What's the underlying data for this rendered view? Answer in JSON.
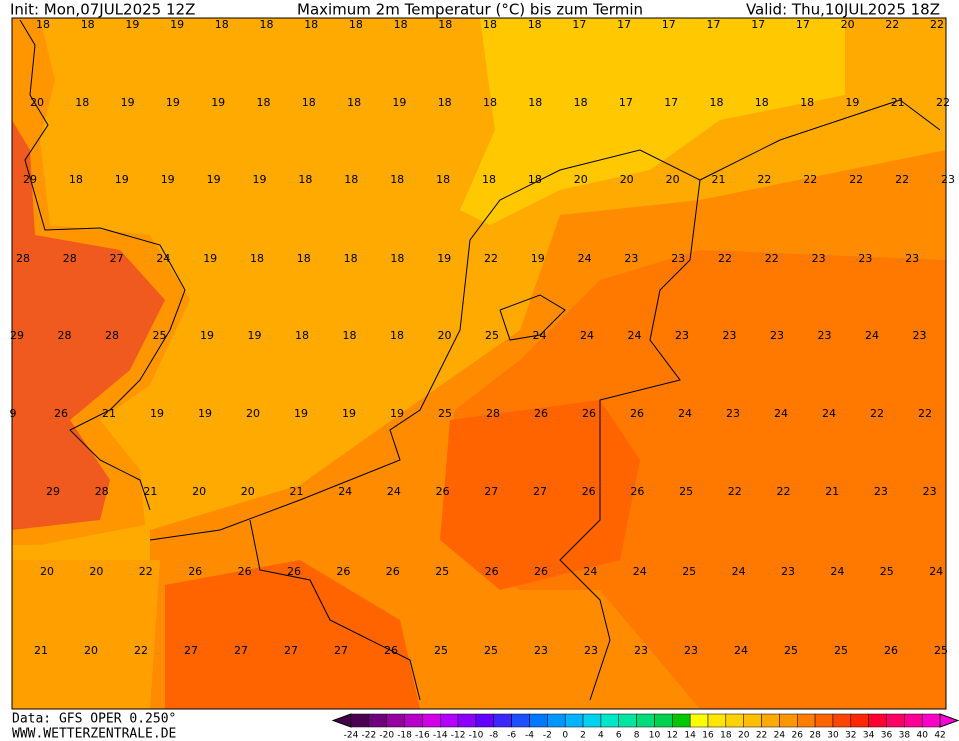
{
  "header": {
    "init": "Init: Mon,07JUL2025 12Z",
    "title": "Maximum 2m Temperatur (°C) bis zum Termin",
    "valid": "Valid: Thu,10JUL2025 18Z"
  },
  "map": {
    "rows": [
      [
        18,
        18,
        19,
        19,
        18,
        18,
        18,
        18,
        18,
        18,
        18,
        18,
        17,
        17,
        17,
        17,
        17,
        17,
        20,
        22,
        22
      ],
      [
        20,
        18,
        19,
        19,
        19,
        18,
        18,
        18,
        19,
        18,
        18,
        18,
        18,
        17,
        17,
        18,
        18,
        18,
        19,
        21,
        22
      ],
      [
        29,
        18,
        19,
        19,
        19,
        19,
        18,
        18,
        18,
        18,
        18,
        18,
        20,
        20,
        20,
        21,
        22,
        22,
        22,
        22,
        23
      ],
      [
        28,
        28,
        27,
        24,
        19,
        18,
        18,
        18,
        18,
        19,
        22,
        19,
        24,
        23,
        23,
        22,
        22,
        23,
        23,
        23
      ],
      [
        29,
        28,
        28,
        25,
        19,
        19,
        18,
        18,
        18,
        20,
        25,
        24,
        24,
        24,
        23,
        23,
        23,
        23,
        24,
        23
      ],
      [
        9,
        26,
        21,
        19,
        19,
        20,
        19,
        19,
        19,
        25,
        28,
        26,
        26,
        26,
        24,
        23,
        24,
        24,
        22,
        22
      ],
      [
        29,
        28,
        21,
        20,
        20,
        21,
        24,
        24,
        26,
        27,
        27,
        26,
        26,
        25,
        22,
        22,
        21,
        23,
        23
      ],
      [
        20,
        20,
        22,
        26,
        26,
        26,
        26,
        26,
        25,
        26,
        26,
        24,
        24,
        25,
        24,
        23,
        24,
        25,
        24
      ],
      [
        21,
        20,
        22,
        27,
        27,
        27,
        27,
        26,
        25,
        25,
        23,
        23,
        23,
        23,
        24,
        25,
        25,
        26,
        25
      ]
    ]
  },
  "footer": {
    "data": "Data: GFS OPER 0.250°",
    "site": "WWW.WETTERZENTRALE.DE"
  },
  "colorbar": {
    "labels": [
      -24,
      -22,
      -20,
      -18,
      -16,
      -14,
      -12,
      -10,
      -8,
      -6,
      -4,
      -2,
      0,
      2,
      4,
      6,
      8,
      10,
      12,
      14,
      16,
      18,
      20,
      22,
      24,
      26,
      28,
      30,
      32,
      34,
      36,
      38,
      40,
      42
    ]
  }
}
